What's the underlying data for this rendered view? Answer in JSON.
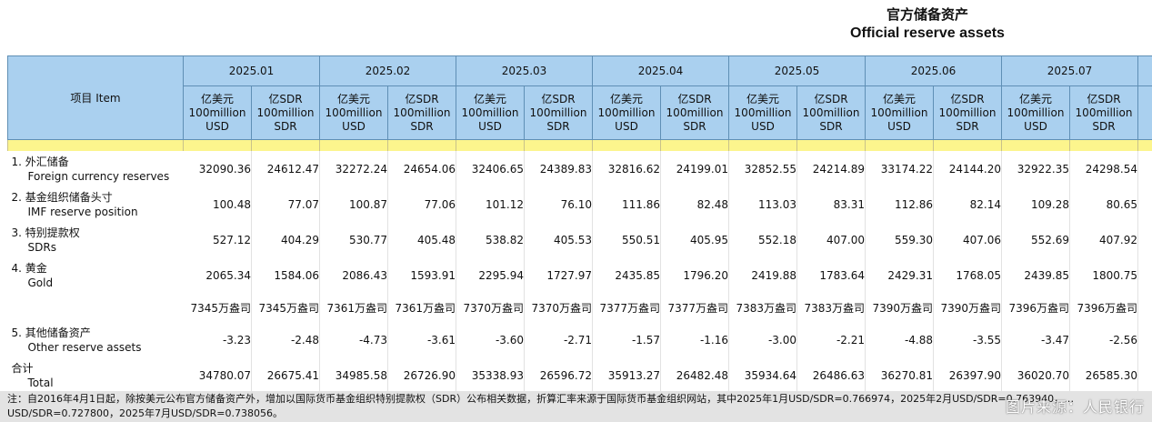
{
  "title": {
    "cn": "官方储备资产",
    "en": "Official reserve assets"
  },
  "header": {
    "item_label": "项目  Item",
    "months": [
      "2025.01",
      "2025.02",
      "2025.03",
      "2025.04",
      "2025.05",
      "2025.06",
      "2025.07"
    ],
    "unit_usd": [
      "亿美元",
      "100million",
      "USD"
    ],
    "unit_sdr": [
      "亿SDR",
      "100million",
      "SDR"
    ]
  },
  "rows": [
    {
      "cn": "1.  外汇储备",
      "en": "Foreign currency reserves",
      "values": [
        "32090.36",
        "24612.47",
        "32272.24",
        "24654.06",
        "32406.65",
        "24389.83",
        "32816.62",
        "24199.01",
        "32852.55",
        "24214.89",
        "33174.22",
        "24144.20",
        "32922.35",
        "24298.54"
      ]
    },
    {
      "cn": "2.  基金组织储备头寸",
      "en": "IMF reserve position",
      "values": [
        "100.48",
        "77.07",
        "100.87",
        "77.06",
        "101.12",
        "76.10",
        "111.86",
        "82.48",
        "113.03",
        "83.31",
        "112.86",
        "82.14",
        "109.28",
        "80.65"
      ]
    },
    {
      "cn": "3.  特别提款权",
      "en": "SDRs",
      "values": [
        "527.12",
        "404.29",
        "530.77",
        "405.48",
        "538.82",
        "405.53",
        "550.51",
        "405.95",
        "552.18",
        "407.00",
        "559.30",
        "407.06",
        "552.69",
        "407.92"
      ]
    },
    {
      "cn": "4.  黄金",
      "en": "Gold",
      "values": [
        "2065.34",
        "1584.06",
        "2086.43",
        "1593.91",
        "2295.94",
        "1727.97",
        "2435.85",
        "1796.20",
        "2419.88",
        "1783.64",
        "2429.31",
        "1768.05",
        "2439.85",
        "1800.75"
      ]
    },
    {
      "cn": "",
      "en": "",
      "values": [
        "7345万盎司",
        "7345万盎司",
        "7361万盎司",
        "7361万盎司",
        "7370万盎司",
        "7370万盎司",
        "7377万盎司",
        "7377万盎司",
        "7383万盎司",
        "7383万盎司",
        "7390万盎司",
        "7390万盎司",
        "7396万盎司",
        "7396万盎司"
      ]
    },
    {
      "cn": "5.  其他储备资产",
      "en": "Other reserve assets",
      "values": [
        "-3.23",
        "-2.48",
        "-4.73",
        "-3.61",
        "-3.60",
        "-2.71",
        "-1.57",
        "-1.16",
        "-3.00",
        "-2.21",
        "-4.88",
        "-3.55",
        "-3.47",
        "-2.56"
      ]
    },
    {
      "cn": "合计",
      "en": "Total",
      "values": [
        "34780.07",
        "26675.41",
        "34985.58",
        "26726.90",
        "35338.93",
        "26596.72",
        "35913.27",
        "26482.48",
        "35934.64",
        "26486.63",
        "36270.81",
        "26397.90",
        "36020.70",
        "26585.30"
      ]
    }
  ],
  "footer": {
    "note": "注：自2016年4月1日起，除按美元公布官方储备资产外，增加以国际货币基金组织特别提款权（SDR）公布相关数据，折算汇率来源于国际货币基金组织网站，其中2025年1月USD/SDR=0.766974，2025年2月USD/SDR=0.763940，… USD/SDR=0.727800，2025年7月USD/SDR=0.738056。",
    "watermark": "图片来源：人民银行"
  }
}
